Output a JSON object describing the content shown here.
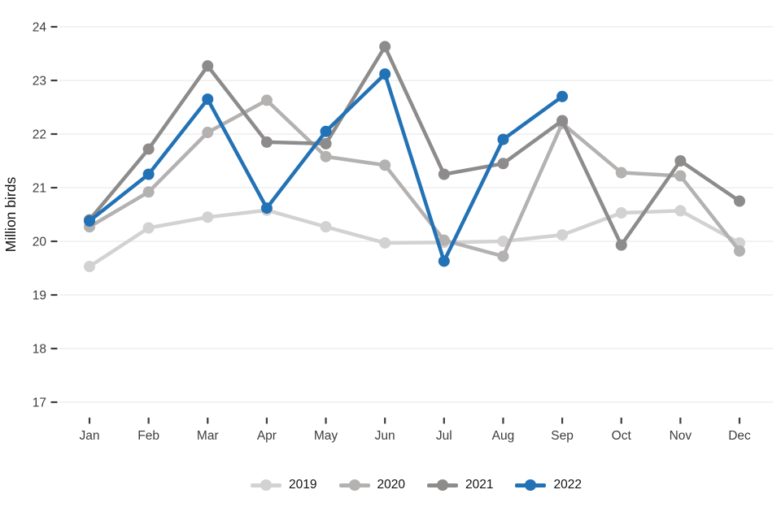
{
  "chart_data": {
    "type": "line",
    "title": "",
    "xlabel": "",
    "ylabel": "Million birds",
    "categories": [
      "Jan",
      "Feb",
      "Mar",
      "Apr",
      "May",
      "Jun",
      "Jul",
      "Aug",
      "Sep",
      "Oct",
      "Nov",
      "Dec"
    ],
    "series": [
      {
        "name": "2019",
        "color": "#d3d2d2",
        "values": [
          19.53,
          20.25,
          20.45,
          20.58,
          20.27,
          19.97,
          19.98,
          20.0,
          20.12,
          20.53,
          20.57,
          19.97
        ]
      },
      {
        "name": "2020",
        "color": "#b4b1b1",
        "values": [
          20.27,
          20.92,
          22.03,
          22.63,
          21.58,
          21.42,
          20.02,
          19.72,
          22.2,
          21.28,
          21.22,
          19.82
        ]
      },
      {
        "name": "2021",
        "color": "#8e8b8b",
        "values": [
          20.4,
          21.72,
          23.27,
          21.85,
          21.82,
          23.63,
          21.25,
          21.45,
          22.25,
          19.93,
          21.5,
          20.75
        ]
      },
      {
        "name": "2022",
        "color": "#2272b5",
        "values": [
          20.38,
          21.25,
          22.65,
          20.62,
          22.05,
          23.12,
          19.63,
          21.9,
          22.7,
          null,
          null,
          null
        ]
      }
    ],
    "ylim": [
      17,
      24
    ],
    "yticks": [
      24,
      23,
      22,
      21,
      20,
      19,
      18,
      17
    ],
    "grid": "horizontal",
    "legend_position": "bottom",
    "colors": {
      "gridline": "#e9e9e9",
      "axis_text": "#3d3d3d",
      "axis_title_text": "#111111",
      "background": "#ffffff"
    }
  }
}
